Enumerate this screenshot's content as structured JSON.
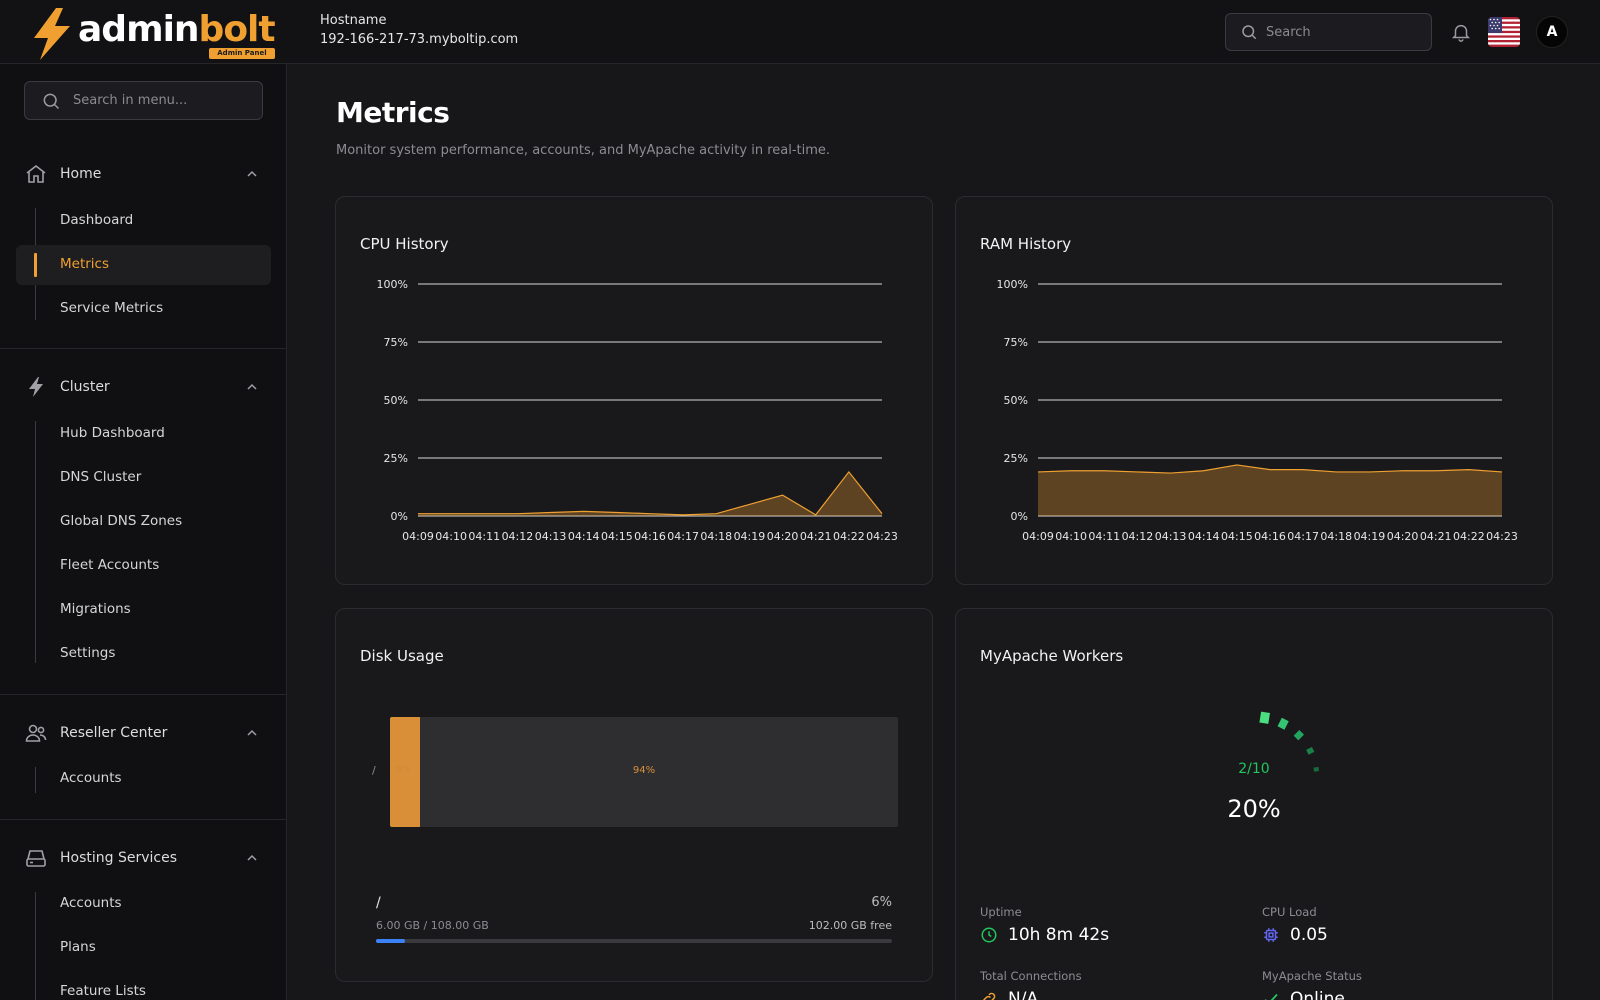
{
  "brand": {
    "name_a": "admin",
    "name_b": "bolt",
    "badge": "Admin Panel"
  },
  "header": {
    "hostname_label": "Hostname",
    "hostname_value": "192-166-217-73.myboltip.com",
    "search_placeholder": "Search",
    "avatar_letter": "A",
    "flag_icon": "us-flag-icon"
  },
  "sidebar": {
    "search_placeholder": "Search in menu...",
    "groups": [
      {
        "label": "Home",
        "icon": "home-icon",
        "items": [
          "Dashboard",
          "Metrics",
          "Service Metrics"
        ]
      },
      {
        "label": "Cluster",
        "icon": "bolt-icon",
        "items": [
          "Hub Dashboard",
          "DNS Cluster",
          "Global DNS Zones",
          "Fleet Accounts",
          "Migrations",
          "Settings"
        ]
      },
      {
        "label": "Reseller Center",
        "icon": "users-icon",
        "items": [
          "Accounts"
        ]
      },
      {
        "label": "Hosting Services",
        "icon": "server-icon",
        "items": [
          "Accounts",
          "Plans",
          "Feature Lists"
        ]
      }
    ],
    "active_item": "Metrics"
  },
  "page": {
    "title": "Metrics",
    "subtitle": "Monitor system performance, accounts, and MyApache activity in real-time."
  },
  "colors": {
    "accent": "#f0a030",
    "success": "#22c55e",
    "progress": "#3b82f6",
    "cpu_icon": "#6366f1"
  },
  "chart_data": [
    {
      "type": "area",
      "title": "CPU History",
      "categories": [
        "04:09",
        "04:10",
        "04:11",
        "04:12",
        "04:13",
        "04:14",
        "04:15",
        "04:16",
        "04:17",
        "04:18",
        "04:19",
        "04:20",
        "04:21",
        "04:22",
        "04:23"
      ],
      "y_ticks": [
        "0%",
        "25%",
        "50%",
        "75%",
        "100%"
      ],
      "ylim": [
        0,
        100
      ],
      "values": [
        1,
        1,
        1,
        1,
        1.5,
        2,
        1.5,
        1,
        0.5,
        1,
        5,
        9,
        0.5,
        19,
        1
      ],
      "color": "#f0a030"
    },
    {
      "type": "area",
      "title": "RAM History",
      "categories": [
        "04:09",
        "04:10",
        "04:11",
        "04:12",
        "04:13",
        "04:14",
        "04:15",
        "04:16",
        "04:17",
        "04:18",
        "04:19",
        "04:20",
        "04:21",
        "04:22",
        "04:23"
      ],
      "y_ticks": [
        "0%",
        "25%",
        "50%",
        "75%",
        "100%"
      ],
      "ylim": [
        0,
        100
      ],
      "values": [
        19,
        19.5,
        19.5,
        19,
        18.5,
        19.5,
        22,
        20,
        20,
        19,
        19,
        19.5,
        19.5,
        20,
        19
      ],
      "color": "#f0a030"
    },
    {
      "type": "bar",
      "title": "Disk Usage",
      "categories": [
        "/"
      ],
      "used_pct": 6,
      "used_label": "6%",
      "free_label": "94%"
    }
  ],
  "disk": {
    "mount": "/",
    "pct_label": "6%",
    "size_text": "6.00 GB / 108.00 GB",
    "free_text": "102.00 GB free",
    "used_fraction": 0.0556
  },
  "workers": {
    "title": "MyApache Workers",
    "count": "2/10",
    "pct": "20%",
    "fraction": 0.2,
    "stats": [
      {
        "label": "Uptime",
        "value": "10h 8m 42s",
        "icon": "clock-icon"
      },
      {
        "label": "CPU Load",
        "value": "0.05",
        "icon": "cpu-icon"
      },
      {
        "label": "Total Connections",
        "value": "N/A",
        "icon": "link-icon"
      },
      {
        "label": "MyApache Status",
        "value": "Online",
        "icon": "check-icon"
      }
    ]
  }
}
